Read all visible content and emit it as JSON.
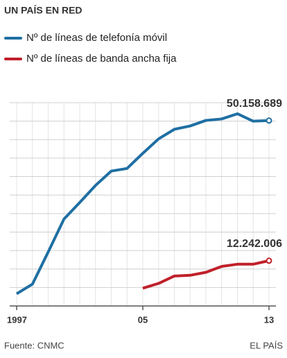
{
  "chart_data": {
    "type": "line",
    "title": "UN PAÍS EN RED",
    "source": "Fuente: CNMC",
    "credit": "EL PAÍS",
    "x": [
      1997,
      1998,
      1999,
      2000,
      2001,
      2002,
      2003,
      2004,
      2005,
      2006,
      2007,
      2008,
      2009,
      2010,
      2011,
      2012,
      2013
    ],
    "xlim": [
      1997,
      2013
    ],
    "xticks": [
      {
        "value": 1997,
        "label": "1997"
      },
      {
        "value": 2005,
        "label": "05"
      },
      {
        "value": 2013,
        "label": "13"
      }
    ],
    "ylim": [
      0,
      55000000
    ],
    "yticks": [
      0,
      5000000,
      10000000,
      15000000,
      20000000,
      25000000,
      30000000,
      35000000,
      40000000,
      45000000,
      50000000,
      55000000
    ],
    "grid": true,
    "series": [
      {
        "name": "Nº de líneas de telefonía móvil",
        "color": "#1f6fa3",
        "values": [
          3300000,
          5900000,
          14600000,
          23500000,
          28000000,
          32600000,
          36500000,
          37200000,
          41300000,
          45200000,
          47800000,
          48700000,
          50200000,
          50600000,
          52000000,
          50000000,
          50158689
        ],
        "value_labels": [
          null,
          null,
          null,
          null,
          null,
          null,
          null,
          null,
          null,
          null,
          null,
          null,
          null,
          null,
          null,
          null,
          "50.158.689"
        ]
      },
      {
        "name": "Nº de líneas de banda ancha fija",
        "color": "#c0202a",
        "values": [
          null,
          null,
          null,
          null,
          null,
          null,
          null,
          null,
          4800000,
          6100000,
          8100000,
          8300000,
          9100000,
          10700000,
          11300000,
          11300000,
          12242006
        ],
        "value_labels": [
          null,
          null,
          null,
          null,
          null,
          null,
          null,
          null,
          null,
          null,
          null,
          null,
          null,
          null,
          null,
          null,
          "12.242.006"
        ]
      }
    ]
  }
}
